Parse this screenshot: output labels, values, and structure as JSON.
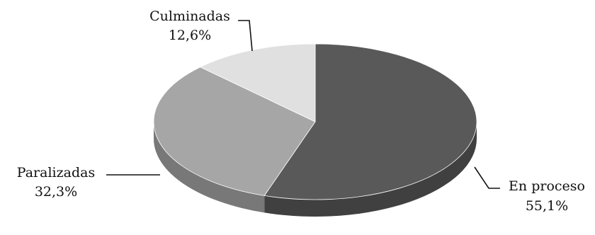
{
  "chart_data": {
    "type": "pie",
    "style": "3d",
    "legend": "none",
    "data_labels": "category-and-percent",
    "slices": [
      {
        "label": "En proceso",
        "value": 55.1,
        "value_text": "55,1%",
        "color": "#595959"
      },
      {
        "label": "Paralizadas",
        "value": 32.3,
        "value_text": "32,3%",
        "color": "#a6a6a6"
      },
      {
        "label": "Culminadas",
        "value": 12.6,
        "value_text": "12,6%",
        "color": "#e0e0e0"
      }
    ]
  }
}
